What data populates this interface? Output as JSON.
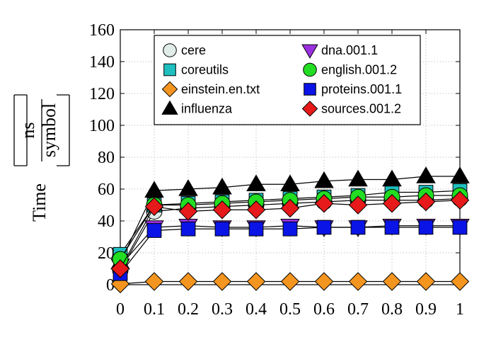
{
  "chart_data": {
    "type": "line",
    "title": "",
    "ylabel": "Time",
    "ylabel_fraction": {
      "numerator": "ns",
      "denominator": "symbol"
    },
    "xlabel": "",
    "x": [
      0,
      0.1,
      0.2,
      0.3,
      0.4,
      0.5,
      0.6,
      0.7,
      0.8,
      0.9,
      1
    ],
    "xticks": [
      "0",
      "0.1",
      "0.2",
      "0.3",
      "0.4",
      "0.5",
      "0.6",
      "0.7",
      "0.8",
      "0.9",
      "1"
    ],
    "xlim": [
      0,
      1
    ],
    "ylim": [
      0,
      160
    ],
    "yticks": [
      "0",
      "20",
      "40",
      "60",
      "80",
      "100",
      "120",
      "140",
      "160"
    ],
    "grid": true,
    "legend_position": "top",
    "series": [
      {
        "name": "cere",
        "marker": "circle",
        "color": "#e0ece8",
        "values": [
          9,
          46,
          48,
          49,
          50,
          51,
          52,
          53,
          53,
          53,
          54
        ]
      },
      {
        "name": "coreutils",
        "marker": "square",
        "color": "#1fbfbf",
        "values": [
          19,
          50,
          51,
          52,
          53,
          54,
          55,
          56,
          58,
          58,
          59
        ]
      },
      {
        "name": "einstein.en.txt",
        "marker": "diamond",
        "color": "#f4951f",
        "values": [
          0.5,
          2,
          2,
          2,
          2,
          2,
          2,
          2,
          2,
          2,
          2
        ]
      },
      {
        "name": "influenza",
        "marker": "triangle-up",
        "color": "#000000",
        "values": [
          14,
          59,
          60,
          61,
          63,
          63,
          65,
          66,
          66,
          68,
          68
        ]
      },
      {
        "name": "dna.001.1",
        "marker": "triangle-down",
        "color": "#9a30e0",
        "values": [
          12,
          36,
          37,
          36,
          36,
          37,
          36,
          36,
          37,
          37,
          37
        ]
      },
      {
        "name": "english.001.2",
        "marker": "circle",
        "color": "#22dd22",
        "values": [
          16,
          50,
          50,
          51,
          52,
          53,
          54,
          55,
          55,
          56,
          56
        ]
      },
      {
        "name": "proteins.001.1",
        "marker": "square",
        "color": "#0a14e6",
        "values": [
          7,
          34,
          35,
          35,
          35,
          35,
          36,
          36,
          36,
          36,
          36
        ]
      },
      {
        "name": "sources.001.2",
        "marker": "diamond",
        "color": "#e61a1a",
        "values": [
          10,
          49,
          46,
          47,
          47,
          48,
          51,
          50,
          51,
          52,
          53
        ]
      }
    ]
  }
}
